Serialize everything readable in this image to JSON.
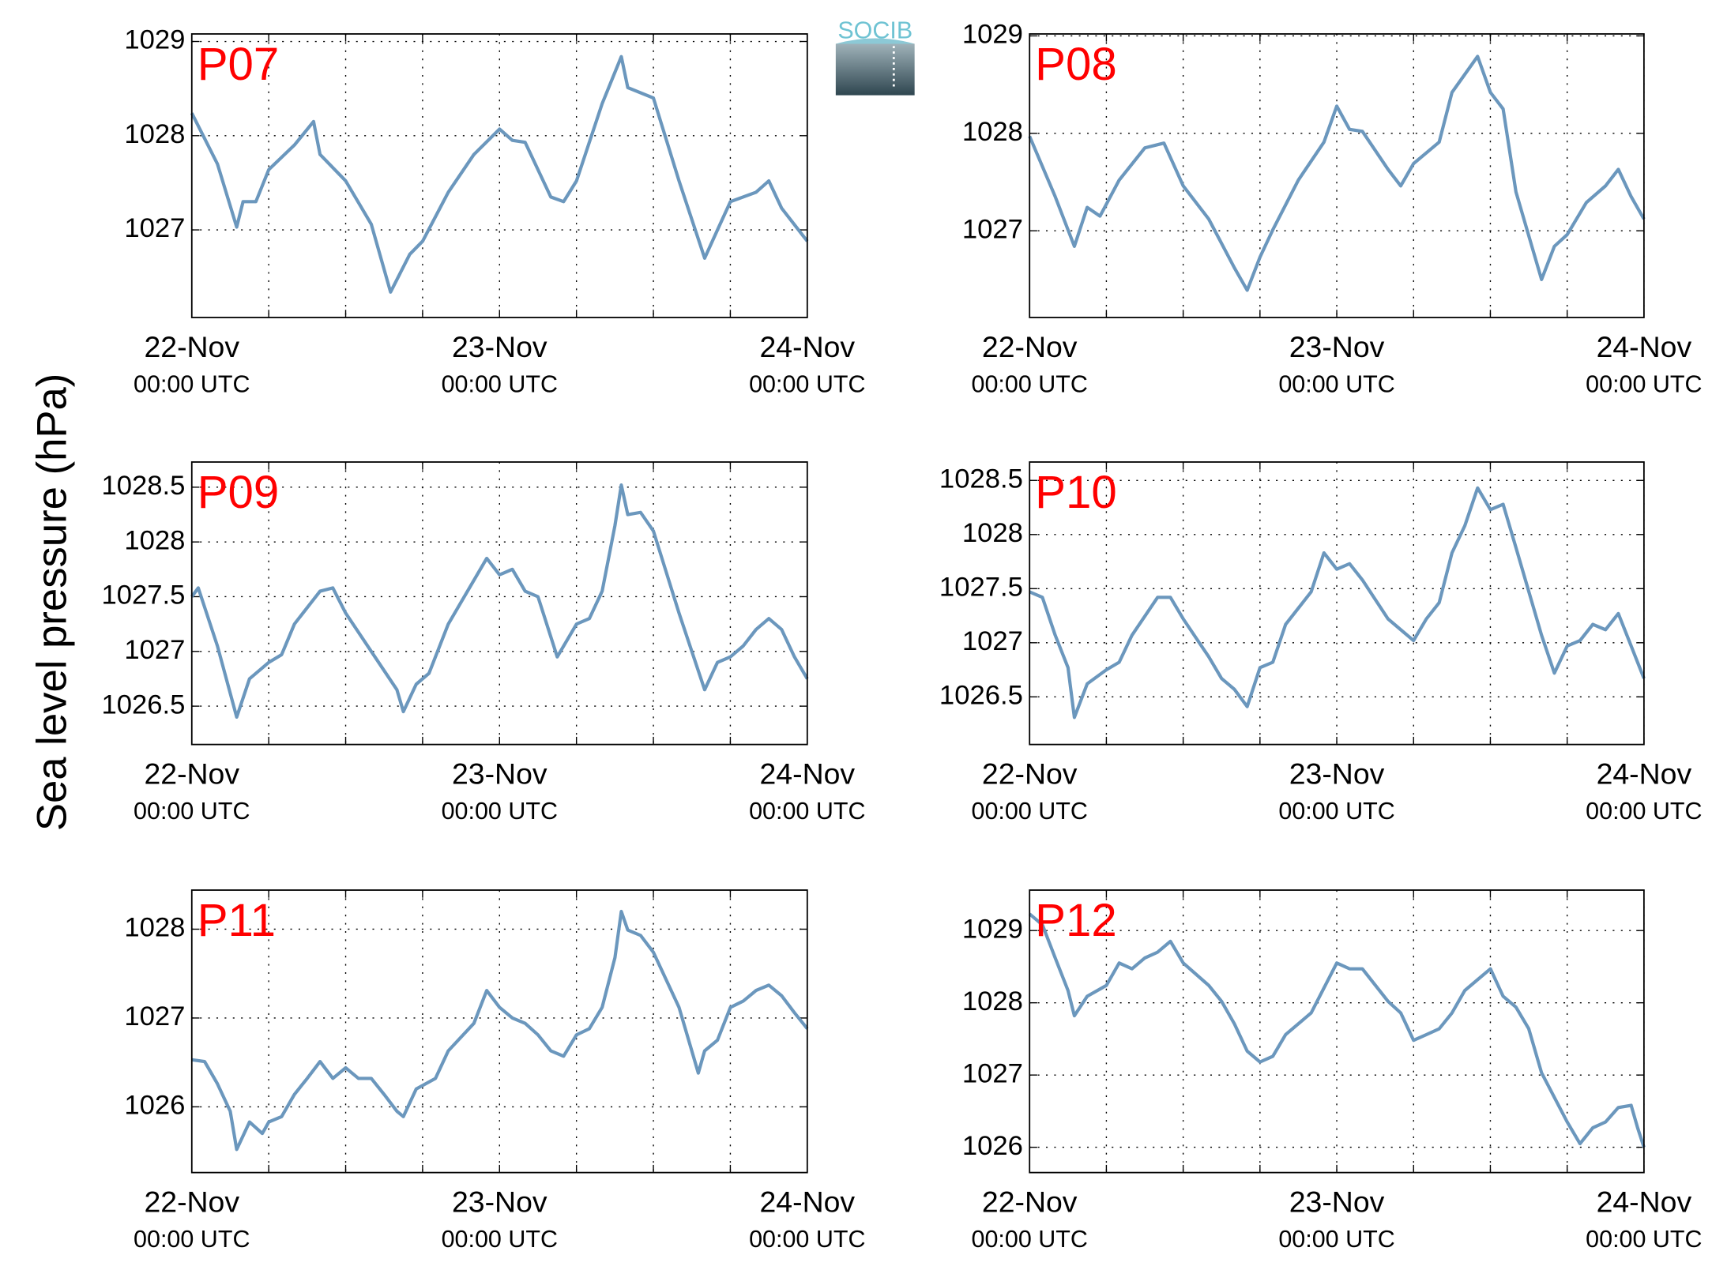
{
  "ylabel": "Sea level pressure (hPa)",
  "logo": "SOCIB",
  "chart_data": [
    {
      "type": "line",
      "title": "P07",
      "title_color": "#ff0000",
      "grid": true,
      "x": [
        0,
        2,
        3.5,
        4,
        5,
        6,
        8,
        9.5,
        10,
        12,
        14,
        15.5,
        17,
        18,
        20,
        22,
        24,
        25,
        26,
        28,
        29,
        30,
        32,
        33.5,
        34,
        36,
        38,
        40,
        41,
        42,
        44,
        45,
        46,
        48
      ],
      "series": [
        {
          "color": "#6b97bd",
          "values": [
            1028.24,
            1027.7,
            1027.03,
            1027.3,
            1027.3,
            1027.64,
            1027.9,
            1028.15,
            1027.8,
            1027.52,
            1027.06,
            1026.34,
            1026.74,
            1026.88,
            1027.4,
            1027.8,
            1028.07,
            1027.95,
            1027.93,
            1027.35,
            1027.3,
            1027.52,
            1028.34,
            1028.84,
            1028.51,
            1028.4,
            1027.52,
            1026.7,
            1027.0,
            1027.3,
            1027.4,
            1027.52,
            1027.23,
            1026.88
          ]
        }
      ],
      "xlim": [
        0,
        48
      ],
      "xticks": [
        {
          "value": 0,
          "label": "22-Nov",
          "sublabel": "00:00 UTC"
        },
        {
          "value": 24,
          "label": "23-Nov",
          "sublabel": "00:00 UTC"
        },
        {
          "value": 48,
          "label": "24-Nov",
          "sublabel": "00:00 UTC"
        }
      ],
      "xminor": [
        6,
        12,
        18,
        30,
        36,
        42
      ],
      "ylim": [
        1026.07,
        1029.08
      ],
      "yticks": [
        1027,
        1028,
        1029
      ]
    },
    {
      "type": "line",
      "title": "P08",
      "title_color": "#ff0000",
      "grid": true,
      "x": [
        0,
        2,
        3.5,
        4.5,
        5.5,
        7,
        9,
        10.5,
        12,
        14,
        16,
        17,
        18,
        19,
        21,
        23,
        24,
        25,
        26,
        28,
        29,
        30,
        32,
        33,
        35,
        36,
        37,
        38,
        40,
        41,
        42,
        43.5,
        45,
        46,
        47,
        48
      ],
      "series": [
        {
          "color": "#6b97bd",
          "values": [
            1027.97,
            1027.35,
            1026.84,
            1027.24,
            1027.15,
            1027.52,
            1027.85,
            1027.9,
            1027.46,
            1027.12,
            1026.62,
            1026.39,
            1026.73,
            1027.01,
            1027.52,
            1027.91,
            1028.28,
            1028.04,
            1028.02,
            1027.63,
            1027.46,
            1027.69,
            1027.91,
            1028.42,
            1028.79,
            1028.42,
            1028.25,
            1027.4,
            1026.5,
            1026.84,
            1026.96,
            1027.29,
            1027.46,
            1027.63,
            1027.35,
            1027.12
          ]
        }
      ],
      "xlim": [
        0,
        48
      ],
      "xticks": [
        {
          "value": 0,
          "label": "22-Nov",
          "sublabel": "00:00 UTC"
        },
        {
          "value": 24,
          "label": "23-Nov",
          "sublabel": "00:00 UTC"
        },
        {
          "value": 48,
          "label": "24-Nov",
          "sublabel": "00:00 UTC"
        }
      ],
      "xminor": [
        6,
        12,
        18,
        30,
        36,
        42
      ],
      "ylim": [
        1026.11,
        1029.02
      ],
      "yticks": [
        1027,
        1028,
        1029
      ]
    },
    {
      "type": "line",
      "title": "P09",
      "title_color": "#ff0000",
      "grid": true,
      "x": [
        0,
        0.5,
        2,
        3.5,
        4.5,
        6,
        7,
        8,
        10,
        11,
        12,
        14,
        16,
        16.5,
        17.5,
        18.5,
        20,
        22,
        23,
        24,
        25,
        26,
        27,
        28.5,
        30,
        31,
        32,
        33,
        33.5,
        34,
        35,
        36,
        38,
        40,
        41,
        42,
        43,
        44,
        45,
        46,
        47,
        48
      ],
      "series": [
        {
          "color": "#6b97bd",
          "values": [
            1027.5,
            1027.58,
            1027.05,
            1026.4,
            1026.75,
            1026.9,
            1026.97,
            1027.25,
            1027.55,
            1027.58,
            1027.35,
            1027.0,
            1026.65,
            1026.45,
            1026.7,
            1026.8,
            1027.25,
            1027.65,
            1027.85,
            1027.7,
            1027.75,
            1027.55,
            1027.5,
            1026.95,
            1027.25,
            1027.3,
            1027.55,
            1028.15,
            1028.52,
            1028.25,
            1028.27,
            1028.1,
            1027.35,
            1026.65,
            1026.9,
            1026.95,
            1027.05,
            1027.2,
            1027.3,
            1027.2,
            1026.95,
            1026.75
          ]
        }
      ],
      "xlim": [
        0,
        48
      ],
      "xticks": [
        {
          "value": 0,
          "label": "22-Nov",
          "sublabel": "00:00 UTC"
        },
        {
          "value": 24,
          "label": "23-Nov",
          "sublabel": "00:00 UTC"
        },
        {
          "value": 48,
          "label": "24-Nov",
          "sublabel": "00:00 UTC"
        }
      ],
      "xminor": [
        6,
        12,
        18,
        30,
        36,
        42
      ],
      "ylim": [
        1026.15,
        1028.73
      ],
      "yticks": [
        1026.5,
        1027,
        1027.5,
        1028,
        1028.5
      ]
    },
    {
      "type": "line",
      "title": "P10",
      "title_color": "#ff0000",
      "grid": true,
      "x": [
        0,
        1,
        2,
        3,
        3.5,
        4.5,
        6,
        7,
        8,
        10,
        11,
        12,
        14,
        15,
        16,
        17,
        18,
        19,
        20,
        22,
        23,
        24,
        25,
        26,
        28,
        30,
        31,
        32,
        33,
        34,
        35,
        36,
        37,
        38,
        40,
        41,
        42,
        43,
        44,
        45,
        46,
        47,
        48
      ],
      "series": [
        {
          "color": "#6b97bd",
          "values": [
            1027.47,
            1027.42,
            1027.07,
            1026.77,
            1026.31,
            1026.62,
            1026.75,
            1026.82,
            1027.07,
            1027.42,
            1027.42,
            1027.22,
            1026.87,
            1026.67,
            1026.57,
            1026.41,
            1026.77,
            1026.82,
            1027.17,
            1027.47,
            1027.83,
            1027.68,
            1027.73,
            1027.58,
            1027.22,
            1027.02,
            1027.22,
            1027.37,
            1027.83,
            1028.08,
            1028.43,
            1028.23,
            1028.28,
            1027.88,
            1027.07,
            1026.72,
            1026.97,
            1027.02,
            1027.17,
            1027.12,
            1027.27,
            1026.97,
            1026.67
          ]
        }
      ],
      "xlim": [
        0,
        48
      ],
      "xticks": [
        {
          "value": 0,
          "label": "22-Nov",
          "sublabel": "00:00 UTC"
        },
        {
          "value": 24,
          "label": "23-Nov",
          "sublabel": "00:00 UTC"
        },
        {
          "value": 48,
          "label": "24-Nov",
          "sublabel": "00:00 UTC"
        }
      ],
      "xminor": [
        6,
        12,
        18,
        30,
        36,
        42
      ],
      "ylim": [
        1026.06,
        1028.67
      ],
      "yticks": [
        1026.5,
        1027,
        1027.5,
        1028,
        1028.5
      ]
    },
    {
      "type": "line",
      "title": "P11",
      "title_color": "#ff0000",
      "grid": true,
      "x": [
        0,
        1,
        2,
        3,
        3.5,
        4.5,
        5.5,
        6,
        7,
        8,
        9,
        10,
        11,
        12,
        13,
        14,
        15,
        16,
        16.5,
        17.5,
        19,
        20,
        22,
        23,
        24,
        25,
        26,
        27,
        28,
        29,
        30,
        31,
        32,
        33,
        33.5,
        34,
        35,
        36,
        38,
        39.5,
        40,
        41,
        42,
        43,
        44,
        45,
        46,
        47,
        48
      ],
      "series": [
        {
          "color": "#6b97bd",
          "values": [
            1026.53,
            1026.51,
            1026.26,
            1025.95,
            1025.52,
            1025.83,
            1025.7,
            1025.83,
            1025.89,
            1026.14,
            1026.32,
            1026.51,
            1026.32,
            1026.44,
            1026.32,
            1026.32,
            1026.14,
            1025.95,
            1025.89,
            1026.2,
            1026.32,
            1026.63,
            1026.94,
            1027.31,
            1027.12,
            1027.0,
            1026.94,
            1026.81,
            1026.63,
            1026.57,
            1026.81,
            1026.88,
            1027.12,
            1027.68,
            1028.2,
            1027.99,
            1027.93,
            1027.74,
            1027.12,
            1026.38,
            1026.63,
            1026.75,
            1027.12,
            1027.19,
            1027.31,
            1027.37,
            1027.25,
            1027.06,
            1026.88
          ]
        }
      ],
      "xlim": [
        0,
        48
      ],
      "xticks": [
        {
          "value": 0,
          "label": "22-Nov",
          "sublabel": "00:00 UTC"
        },
        {
          "value": 24,
          "label": "23-Nov",
          "sublabel": "00:00 UTC"
        },
        {
          "value": 48,
          "label": "24-Nov",
          "sublabel": "00:00 UTC"
        }
      ],
      "xminor": [
        6,
        12,
        18,
        30,
        36,
        42
      ],
      "ylim": [
        1025.26,
        1028.44
      ],
      "yticks": [
        1026,
        1027,
        1028
      ]
    },
    {
      "type": "line",
      "title": "P12",
      "title_color": "#ff0000",
      "grid": true,
      "x": [
        0,
        1,
        2,
        3,
        3.5,
        4.5,
        6,
        7,
        8,
        9,
        10,
        11,
        12,
        14,
        15,
        16,
        17,
        18,
        19,
        20,
        22,
        24,
        25,
        26,
        28,
        29,
        30,
        31,
        32,
        33,
        34,
        35,
        36,
        37,
        38,
        39,
        40,
        42,
        43,
        44,
        45,
        46,
        47,
        47.5,
        48
      ],
      "series": [
        {
          "color": "#6b97bd",
          "values": [
            1029.23,
            1029.08,
            1028.62,
            1028.17,
            1027.82,
            1028.09,
            1028.24,
            1028.55,
            1028.47,
            1028.62,
            1028.7,
            1028.85,
            1028.55,
            1028.24,
            1028.02,
            1027.71,
            1027.33,
            1027.18,
            1027.26,
            1027.56,
            1027.86,
            1028.55,
            1028.47,
            1028.47,
            1028.02,
            1027.86,
            1027.48,
            1027.56,
            1027.64,
            1027.86,
            1028.17,
            1028.32,
            1028.47,
            1028.09,
            1027.94,
            1027.64,
            1027.03,
            1026.35,
            1026.05,
            1026.27,
            1026.35,
            1026.55,
            1026.58,
            1026.27,
            1026.0
          ]
        }
      ],
      "xlim": [
        0,
        48
      ],
      "xticks": [
        {
          "value": 0,
          "label": "22-Nov",
          "sublabel": "00:00 UTC"
        },
        {
          "value": 24,
          "label": "23-Nov",
          "sublabel": "00:00 UTC"
        },
        {
          "value": 48,
          "label": "24-Nov",
          "sublabel": "00:00 UTC"
        }
      ],
      "xminor": [
        6,
        12,
        18,
        30,
        36,
        42
      ],
      "ylim": [
        1025.65,
        1029.56
      ],
      "yticks": [
        1026,
        1027,
        1028,
        1029
      ]
    }
  ]
}
